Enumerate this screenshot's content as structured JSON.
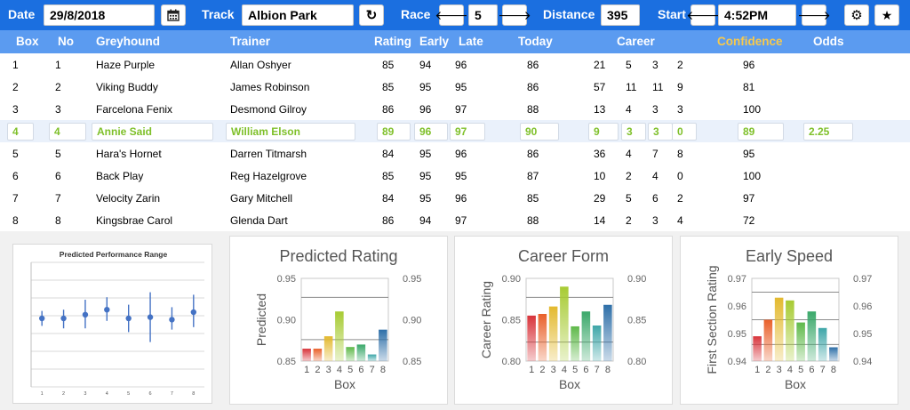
{
  "toolbar": {
    "date_label": "Date",
    "date_value": "29/8/2018",
    "calendar_icon": "calendar-icon",
    "track_label": "Track",
    "track_value": "Albion Park",
    "refresh_icon": "refresh-icon",
    "race_label": "Race",
    "race_value": "5",
    "distance_label": "Distance",
    "distance_value": "395",
    "start_label": "Start",
    "start_value": "4:52PM",
    "prev_glyph": "🡐",
    "next_glyph": "🡒",
    "refresh_glyph": "↻",
    "settings_glyph": "⚙",
    "star_glyph": "★"
  },
  "table": {
    "headers": {
      "box": "Box",
      "no": "No",
      "greyhound": "Greyhound",
      "trainer": "Trainer",
      "rating": "Rating",
      "early": "Early",
      "late": "Late",
      "today": "Today",
      "career": "Career",
      "confidence": "Confidence",
      "odds": "Odds"
    },
    "rows": [
      {
        "box": "1",
        "no": "1",
        "dog": "Haze Purple",
        "trainer": "Allan Oshyer",
        "rating": "85",
        "early": "94",
        "late": "96",
        "today": "86",
        "c1": "21",
        "c2": "5",
        "c3": "3",
        "c4": "2",
        "confidence": "96",
        "odds": ""
      },
      {
        "box": "2",
        "no": "2",
        "dog": "Viking Buddy",
        "trainer": "James Robinson",
        "rating": "85",
        "early": "95",
        "late": "95",
        "today": "86",
        "c1": "57",
        "c2": "11",
        "c3": "11",
        "c4": "9",
        "confidence": "81",
        "odds": ""
      },
      {
        "box": "3",
        "no": "3",
        "dog": "Farcelona Fenix",
        "trainer": "Desmond Gilroy",
        "rating": "86",
        "early": "96",
        "late": "97",
        "today": "88",
        "c1": "13",
        "c2": "4",
        "c3": "3",
        "c4": "3",
        "confidence": "100",
        "odds": ""
      },
      {
        "box": "4",
        "no": "4",
        "dog": "Annie Said",
        "trainer": "William Elson",
        "rating": "89",
        "early": "96",
        "late": "97",
        "today": "90",
        "c1": "9",
        "c2": "3",
        "c3": "3",
        "c4": "0",
        "confidence": "89",
        "odds": "2.25"
      },
      {
        "box": "5",
        "no": "5",
        "dog": "Hara's Hornet",
        "trainer": "Darren Titmarsh",
        "rating": "84",
        "early": "95",
        "late": "96",
        "today": "86",
        "c1": "36",
        "c2": "4",
        "c3": "7",
        "c4": "8",
        "confidence": "95",
        "odds": ""
      },
      {
        "box": "6",
        "no": "6",
        "dog": "Back Play",
        "trainer": "Reg Hazelgrove",
        "rating": "85",
        "early": "95",
        "late": "95",
        "today": "87",
        "c1": "10",
        "c2": "2",
        "c3": "4",
        "c4": "0",
        "confidence": "100",
        "odds": ""
      },
      {
        "box": "7",
        "no": "7",
        "dog": "Velocity Zarin",
        "trainer": "Gary Mitchell",
        "rating": "84",
        "early": "95",
        "late": "96",
        "today": "85",
        "c1": "29",
        "c2": "5",
        "c3": "6",
        "c4": "2",
        "confidence": "97",
        "odds": ""
      },
      {
        "box": "8",
        "no": "8",
        "dog": "Kingsbrae Carol",
        "trainer": "Glenda Dart",
        "rating": "86",
        "early": "94",
        "late": "97",
        "today": "88",
        "c1": "14",
        "c2": "2",
        "c3": "3",
        "c4": "4",
        "confidence": "72",
        "odds": ""
      }
    ],
    "selected_index": 3
  },
  "colors": {
    "bar_colors": [
      "#d8343b",
      "#e9602a",
      "#e3b92e",
      "#a7cb33",
      "#5fb94a",
      "#3aa86a",
      "#3ea6a8",
      "#2e6fa8"
    ],
    "selected_text": "#7fc02a",
    "confidence_header": "#f7c94c"
  },
  "chart_data": [
    {
      "type": "scatter",
      "title": "Predicted Performance Range",
      "categories": [
        "1",
        "2",
        "3",
        "4",
        "5",
        "6",
        "7",
        "8"
      ],
      "values": [
        0.55,
        0.55,
        0.58,
        0.62,
        0.55,
        0.56,
        0.54,
        0.6
      ],
      "low": [
        0.49,
        0.47,
        0.47,
        0.53,
        0.44,
        0.36,
        0.46,
        0.48
      ],
      "high": [
        0.61,
        0.62,
        0.7,
        0.72,
        0.66,
        0.76,
        0.64,
        0.74
      ],
      "ylim": [
        0,
        1
      ],
      "grid": true
    },
    {
      "type": "bar",
      "title": "Predicted Rating",
      "xlabel": "Box",
      "ylabel": "Predicted",
      "categories": [
        "1",
        "2",
        "3",
        "4",
        "5",
        "6",
        "7",
        "8"
      ],
      "values": [
        0.865,
        0.865,
        0.88,
        0.91,
        0.867,
        0.87,
        0.858,
        0.888
      ],
      "ylim": [
        0.85,
        0.95
      ],
      "yticks": [
        "0.95",
        "0.90",
        "0.85"
      ],
      "ref_lines": [
        0.876,
        0.927
      ]
    },
    {
      "type": "bar",
      "title": "Career Form",
      "xlabel": "Box",
      "ylabel": "Career Rating",
      "categories": [
        "1",
        "2",
        "3",
        "4",
        "5",
        "6",
        "7",
        "8"
      ],
      "values": [
        0.855,
        0.857,
        0.866,
        0.89,
        0.842,
        0.86,
        0.843,
        0.868
      ],
      "ylim": [
        0.8,
        0.9
      ],
      "yticks": [
        "0.90",
        "0.85",
        "0.80"
      ],
      "ref_lines": [
        0.823,
        0.877
      ]
    },
    {
      "type": "bar",
      "title": "Early Speed",
      "xlabel": "Box",
      "ylabel": "First Section Rating",
      "categories": [
        "1",
        "2",
        "3",
        "4",
        "5",
        "6",
        "7",
        "8"
      ],
      "values": [
        0.949,
        0.955,
        0.963,
        0.962,
        0.954,
        0.958,
        0.952,
        0.945
      ],
      "ylim": [
        0.94,
        0.97
      ],
      "yticks": [
        "0.97",
        "0.96",
        "0.95",
        "0.94"
      ],
      "ref_lines": [
        0.946,
        0.955,
        0.965
      ]
    }
  ]
}
